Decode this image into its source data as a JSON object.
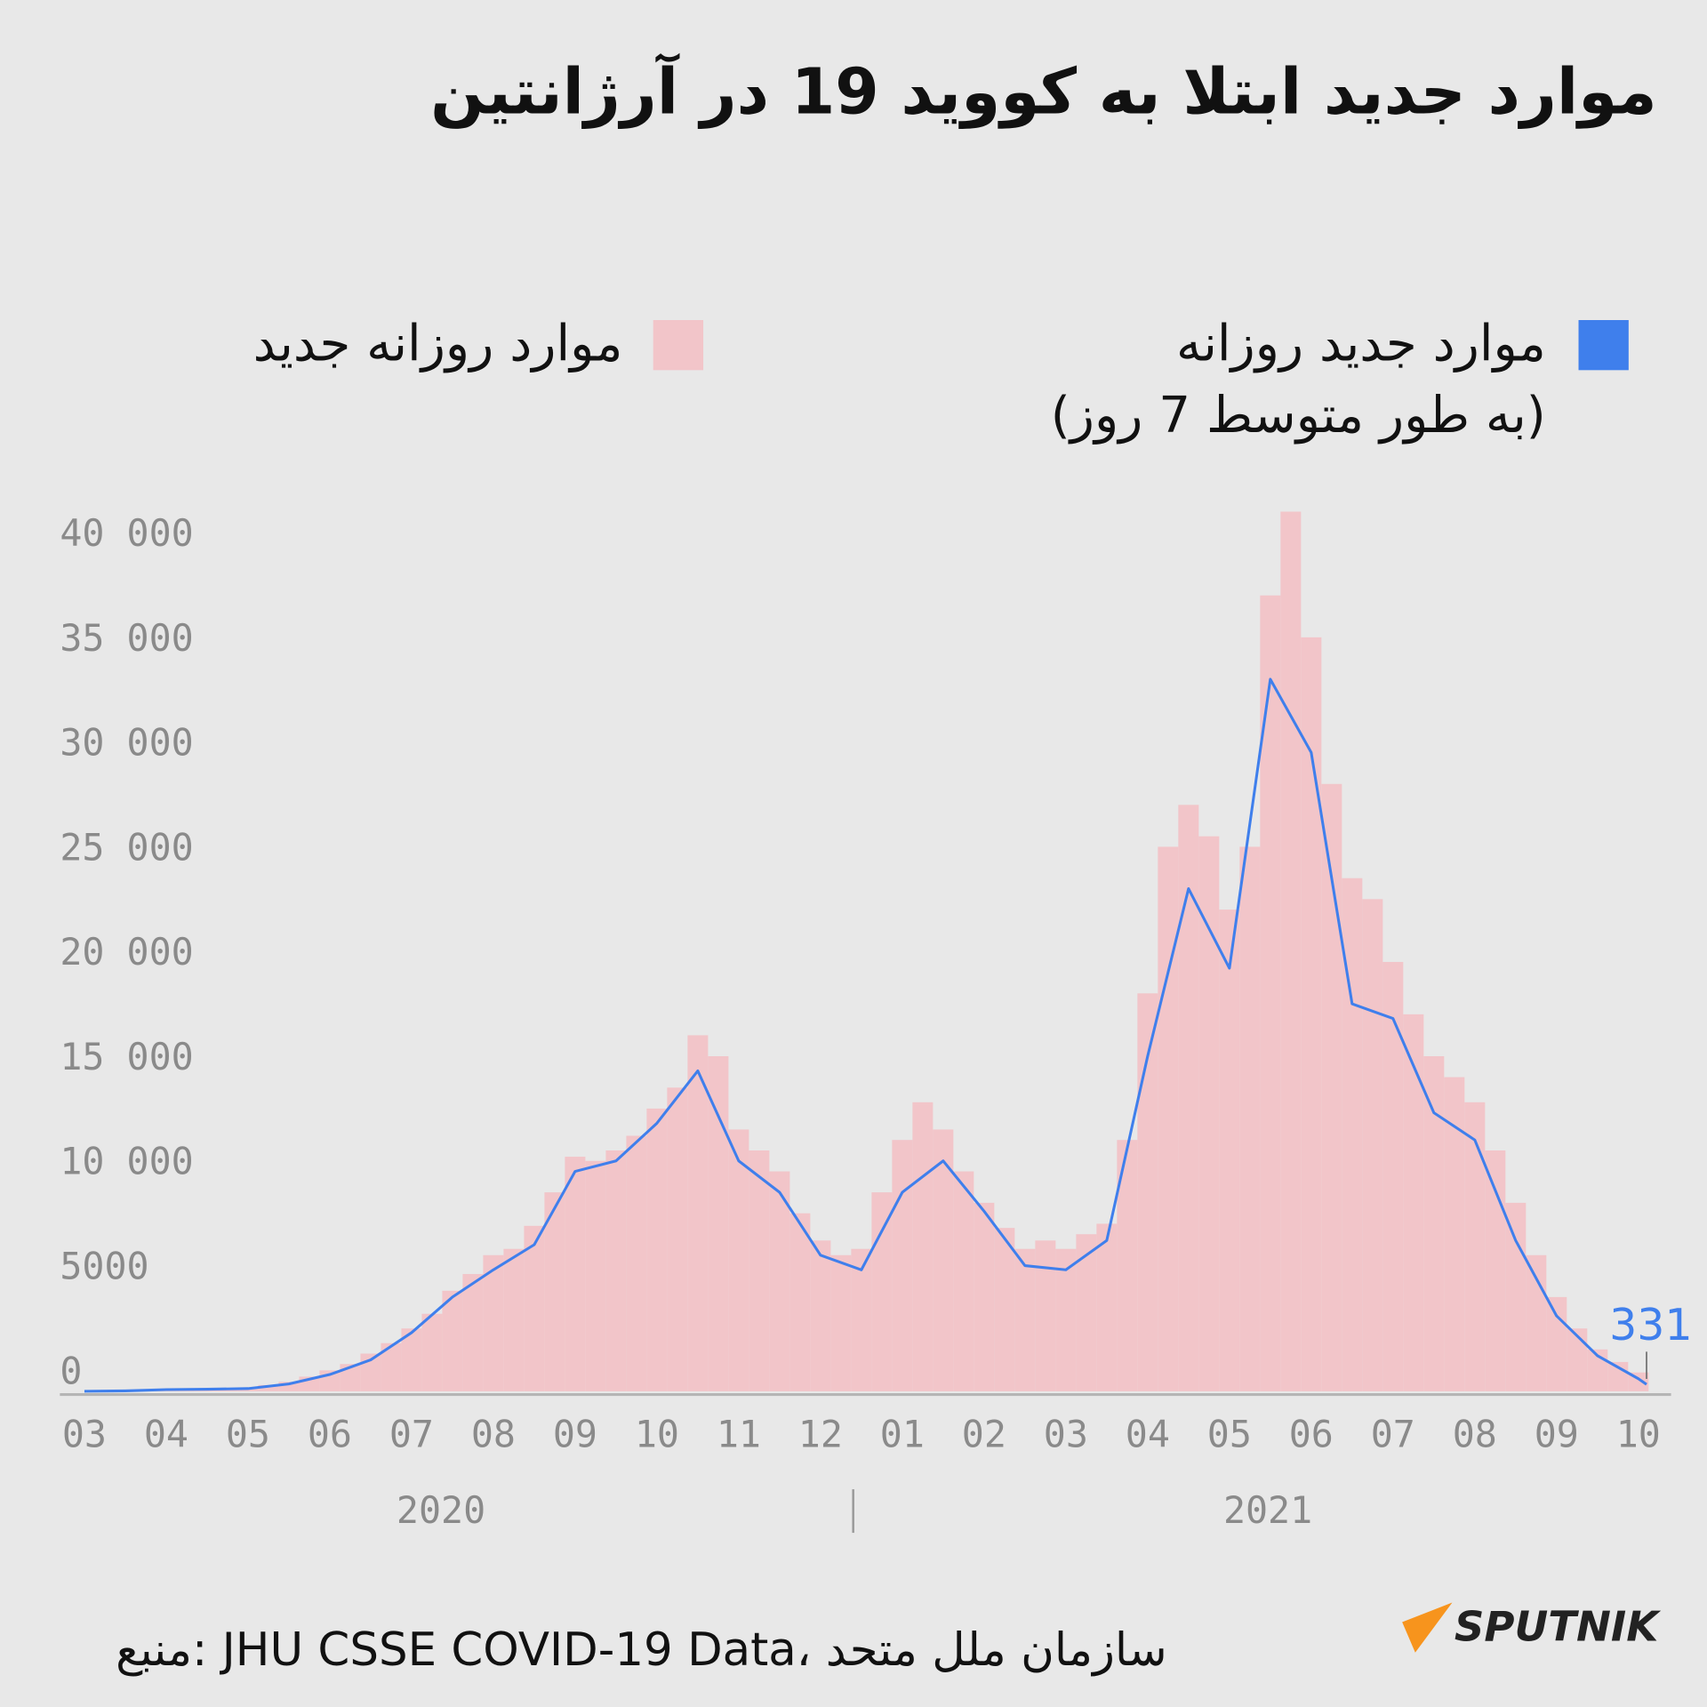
{
  "chart_data": {
    "type": "combo",
    "title": "موارد جدید ابتلا به کووید 19 در آرژانتین",
    "source": "منبع: JHU CSSE COVID-19 Data، سازمان ملل متحد",
    "logo": "SPUTNIK",
    "xlim": [
      -0.3,
      19.4
    ],
    "ylim": [
      0,
      42000
    ],
    "xticks": [
      {
        "value": 0,
        "label": "03"
      },
      {
        "value": 1,
        "label": "04"
      },
      {
        "value": 2,
        "label": "05"
      },
      {
        "value": 3,
        "label": "06"
      },
      {
        "value": 4,
        "label": "07"
      },
      {
        "value": 5,
        "label": "08"
      },
      {
        "value": 6,
        "label": "09"
      },
      {
        "value": 7,
        "label": "10"
      },
      {
        "value": 8,
        "label": "11"
      },
      {
        "value": 9,
        "label": "12"
      },
      {
        "value": 10,
        "label": "01"
      },
      {
        "value": 11,
        "label": "02"
      },
      {
        "value": 12,
        "label": "03"
      },
      {
        "value": 13,
        "label": "04"
      },
      {
        "value": 14,
        "label": "05"
      },
      {
        "value": 15,
        "label": "06"
      },
      {
        "value": 16,
        "label": "07"
      },
      {
        "value": 17,
        "label": "08"
      },
      {
        "value": 18,
        "label": "09"
      },
      {
        "value": 19,
        "label": "10"
      }
    ],
    "yticks": [
      0,
      5000,
      {
        "value": 10000,
        "label": "10 000"
      },
      {
        "value": 15000,
        "label": "15 000"
      },
      {
        "value": 20000,
        "label": "20 000"
      },
      {
        "value": 25000,
        "label": "25 000"
      },
      {
        "value": 30000,
        "label": "30 000"
      },
      {
        "value": 35000,
        "label": "35 000"
      },
      {
        "value": 40000,
        "label": "40 000"
      }
    ],
    "year_labels": [
      {
        "label": "2020",
        "x": 4.36
      },
      {
        "label": "2021",
        "x": 14.47
      }
    ],
    "year_divider": 9.4,
    "series": [
      {
        "name": "موارد روزانه جدید",
        "type": "bar",
        "color": "#f2c5c9",
        "x": [
          0,
          0.25,
          0.5,
          0.75,
          1,
          1.25,
          1.5,
          1.75,
          2,
          2.25,
          2.5,
          2.75,
          3,
          3.25,
          3.5,
          3.75,
          4,
          4.25,
          4.5,
          4.75,
          5,
          5.25,
          5.5,
          5.75,
          6,
          6.25,
          6.5,
          6.75,
          7,
          7.25,
          7.5,
          7.75,
          8,
          8.25,
          8.5,
          8.75,
          9,
          9.25,
          9.5,
          9.75,
          10,
          10.25,
          10.5,
          10.75,
          11,
          11.25,
          11.5,
          11.75,
          12,
          12.25,
          12.5,
          12.75,
          13,
          13.25,
          13.5,
          13.75,
          14,
          14.25,
          14.5,
          14.75,
          15,
          15.25,
          15.5,
          15.75,
          16,
          16.25,
          16.5,
          16.75,
          17,
          17.25,
          17.5,
          17.75,
          18,
          18.25,
          18.5,
          18.75,
          19
        ],
        "values": [
          0,
          0,
          30,
          60,
          90,
          110,
          100,
          130,
          180,
          300,
          450,
          700,
          1000,
          1300,
          1800,
          2300,
          3000,
          3700,
          4800,
          5600,
          6500,
          6800,
          7900,
          9500,
          11200,
          11000,
          11500,
          12200,
          13500,
          14500,
          17000,
          16000,
          12500,
          11500,
          10500,
          8500,
          7200,
          6500,
          6800,
          9500,
          12000,
          13800,
          12500,
          10500,
          9000,
          7800,
          6800,
          7200,
          6800,
          7500,
          8000,
          12000,
          19000,
          26000,
          28000,
          26500,
          23000,
          26000,
          38000,
          42000,
          36000,
          29000,
          24500,
          23500,
          20500,
          18000,
          16000,
          15000,
          13800,
          11500,
          9000,
          6500,
          4500,
          3000,
          2000,
          1400,
          900
        ]
      },
      {
        "name": "موارد جدید روزانه\n(به طور متوسط 7 روز)",
        "type": "line",
        "color": "#3f7fec",
        "x": [
          0,
          0.5,
          1,
          1.5,
          2,
          2.5,
          3,
          3.5,
          4,
          4.5,
          5,
          5.5,
          6,
          6.5,
          7,
          7.5,
          8,
          8.5,
          9,
          9.5,
          10,
          10.5,
          11,
          11.5,
          12,
          12.5,
          13,
          13.5,
          14,
          14.5,
          15,
          15.5,
          16,
          16.5,
          17,
          17.5,
          18,
          18.5,
          19,
          19.1
        ],
        "values": [
          0,
          20,
          80,
          100,
          130,
          350,
          800,
          1500,
          2800,
          4500,
          5800,
          7000,
          10500,
          11000,
          12800,
          15300,
          11000,
          9500,
          6500,
          5800,
          9500,
          11000,
          8600,
          6000,
          5800,
          7200,
          16000,
          24000,
          20200,
          34000,
          30500,
          18500,
          17800,
          13300,
          12000,
          7200,
          3600,
          1700,
          600,
          331
        ]
      }
    ]
  }
}
